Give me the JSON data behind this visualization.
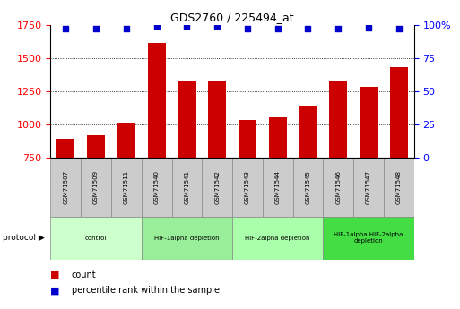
{
  "title": "GDS2760 / 225494_at",
  "samples": [
    "GSM71507",
    "GSM71509",
    "GSM71511",
    "GSM71540",
    "GSM71541",
    "GSM71542",
    "GSM71543",
    "GSM71544",
    "GSM71545",
    "GSM71546",
    "GSM71547",
    "GSM71548"
  ],
  "counts": [
    890,
    920,
    1010,
    1610,
    1330,
    1330,
    1030,
    1050,
    1140,
    1330,
    1280,
    1430
  ],
  "percentile_ranks": [
    97,
    97,
    97,
    99,
    99,
    99,
    97,
    97,
    97,
    97,
    98,
    97
  ],
  "ylim_left": [
    750,
    1750
  ],
  "ylim_right": [
    0,
    100
  ],
  "yticks_left": [
    750,
    1000,
    1250,
    1500,
    1750
  ],
  "yticks_right": [
    0,
    25,
    50,
    75,
    100
  ],
  "bar_color": "#cc0000",
  "dot_color": "#0000cc",
  "groups": [
    {
      "label": "control",
      "indices": [
        0,
        1,
        2
      ],
      "color": "#ccffcc"
    },
    {
      "label": "HIF-1alpha depletion",
      "indices": [
        3,
        4,
        5
      ],
      "color": "#99ee99"
    },
    {
      "label": "HIF-2alpha depletion",
      "indices": [
        6,
        7,
        8
      ],
      "color": "#aaffaa"
    },
    {
      "label": "HIF-1alpha HIF-2alpha\ndepletion",
      "indices": [
        9,
        10,
        11
      ],
      "color": "#44dd44"
    }
  ],
  "legend_count_label": "count",
  "legend_pct_label": "percentile rank within the sample",
  "protocol_label": "protocol",
  "sample_label_bg": "#cccccc",
  "grid_color": "#000000",
  "bg_color": "#ffffff"
}
